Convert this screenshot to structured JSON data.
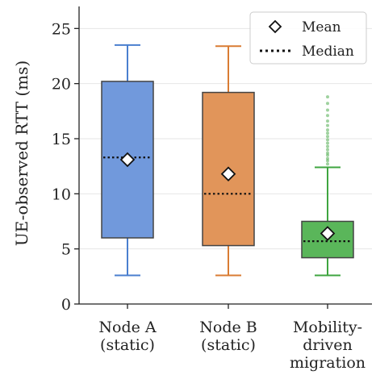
{
  "chart_data": {
    "type": "box",
    "title": "",
    "xlabel": "",
    "ylabel": "UE-observed RTT (ms)",
    "ylim": [
      0,
      27
    ],
    "yticks": [
      0,
      5,
      10,
      15,
      20,
      25
    ],
    "grid": "horizontal",
    "legend": {
      "position": "top-right",
      "entries": [
        {
          "label": "Mean",
          "marker": "white-diamond"
        },
        {
          "label": "Median",
          "marker": "dotted-line"
        }
      ]
    },
    "categories": [
      [
        "Node A",
        "(static)"
      ],
      [
        "Node B",
        "(static)"
      ],
      [
        "Mobility-",
        "driven",
        "migration"
      ]
    ],
    "boxes": [
      {
        "whisker_low": 2.6,
        "q1": 6.0,
        "median": 13.3,
        "q3": 20.2,
        "whisker_high": 23.5,
        "mean": 13.1,
        "outliers": [],
        "color": "#7199dc"
      },
      {
        "whisker_low": 2.6,
        "q1": 5.3,
        "median": 10.0,
        "q3": 19.2,
        "whisker_high": 23.4,
        "mean": 11.8,
        "outliers": [],
        "color": "#e1955a"
      },
      {
        "whisker_low": 2.6,
        "q1": 4.2,
        "median": 5.7,
        "q3": 7.5,
        "whisker_high": 12.4,
        "mean": 6.4,
        "outliers": [
          12.7,
          13.0,
          13.2,
          13.5,
          13.7,
          14.0,
          14.3,
          14.6,
          14.9,
          15.2,
          15.5,
          15.8,
          16.2,
          16.6,
          17.1,
          17.6,
          18.2,
          18.8
        ],
        "color": "#5ab65a"
      }
    ],
    "colors": {
      "line_a": "#4a7fcf",
      "line_b": "#d97c33",
      "line_c": "#3fa540",
      "edge": "#444444"
    }
  }
}
